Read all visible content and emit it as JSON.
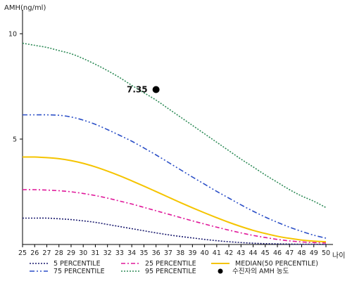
{
  "chart_data": {
    "type": "line",
    "ylabel": "AMH(ng/ml)",
    "xlabel": "나이",
    "xlim": [
      25,
      50
    ],
    "ylim": [
      0,
      11
    ],
    "x_ticks": [
      25,
      26,
      27,
      28,
      29,
      30,
      31,
      32,
      33,
      34,
      35,
      36,
      37,
      38,
      39,
      40,
      41,
      42,
      43,
      44,
      45,
      46,
      47,
      48,
      49,
      50
    ],
    "y_ticks": [
      5,
      10
    ],
    "grid": false,
    "legend_position": "bottom",
    "x": [
      25,
      26,
      27,
      28,
      29,
      30,
      31,
      32,
      33,
      34,
      35,
      36,
      37,
      38,
      39,
      40,
      41,
      42,
      43,
      44,
      45,
      46,
      47,
      48,
      49,
      50
    ],
    "series": [
      {
        "name": "5 PERCENTILE",
        "color": "#1a1a6e",
        "dash": "2,2",
        "values": [
          1.25,
          1.25,
          1.25,
          1.22,
          1.18,
          1.12,
          1.05,
          0.95,
          0.85,
          0.75,
          0.65,
          0.55,
          0.46,
          0.38,
          0.31,
          0.24,
          0.18,
          0.13,
          0.09,
          0.06,
          0.04,
          0.03,
          0.02,
          0.01,
          0.01,
          0.0
        ]
      },
      {
        "name": "25 PERCENTILE",
        "color": "#e0189a",
        "dash": "6,3,2,3",
        "values": [
          2.6,
          2.6,
          2.58,
          2.55,
          2.5,
          2.42,
          2.32,
          2.2,
          2.06,
          1.92,
          1.76,
          1.6,
          1.44,
          1.28,
          1.12,
          0.97,
          0.82,
          0.68,
          0.55,
          0.43,
          0.33,
          0.24,
          0.17,
          0.12,
          0.09,
          0.07
        ]
      },
      {
        "name": "MEDIAN(50 PERCENTILE)",
        "color": "#f5c400",
        "dash": "",
        "values": [
          4.15,
          4.15,
          4.12,
          4.07,
          3.98,
          3.85,
          3.68,
          3.48,
          3.26,
          3.02,
          2.77,
          2.51,
          2.25,
          1.99,
          1.74,
          1.5,
          1.27,
          1.05,
          0.85,
          0.67,
          0.52,
          0.39,
          0.29,
          0.21,
          0.16,
          0.13
        ]
      },
      {
        "name": "75 PERCENTILE",
        "color": "#2b4fc7",
        "dash": "7,3,2,3,2,3",
        "values": [
          6.15,
          6.15,
          6.15,
          6.13,
          6.05,
          5.9,
          5.7,
          5.45,
          5.18,
          4.9,
          4.58,
          4.25,
          3.9,
          3.55,
          3.2,
          2.86,
          2.52,
          2.2,
          1.88,
          1.58,
          1.3,
          1.05,
          0.82,
          0.62,
          0.44,
          0.3
        ]
      },
      {
        "name": "95 PERCENTILE",
        "color": "#2e8b57",
        "dash": "2,2",
        "values": [
          9.55,
          9.45,
          9.35,
          9.2,
          9.05,
          8.82,
          8.55,
          8.25,
          7.92,
          7.55,
          7.2,
          6.85,
          6.45,
          6.05,
          5.65,
          5.25,
          4.85,
          4.45,
          4.05,
          3.68,
          3.3,
          2.95,
          2.6,
          2.3,
          2.05,
          1.75
        ]
      }
    ],
    "marker": {
      "name": "수진자의 AMH 농도",
      "x": 36,
      "y": 7.35,
      "label": "7.35",
      "color": "#000000"
    }
  }
}
